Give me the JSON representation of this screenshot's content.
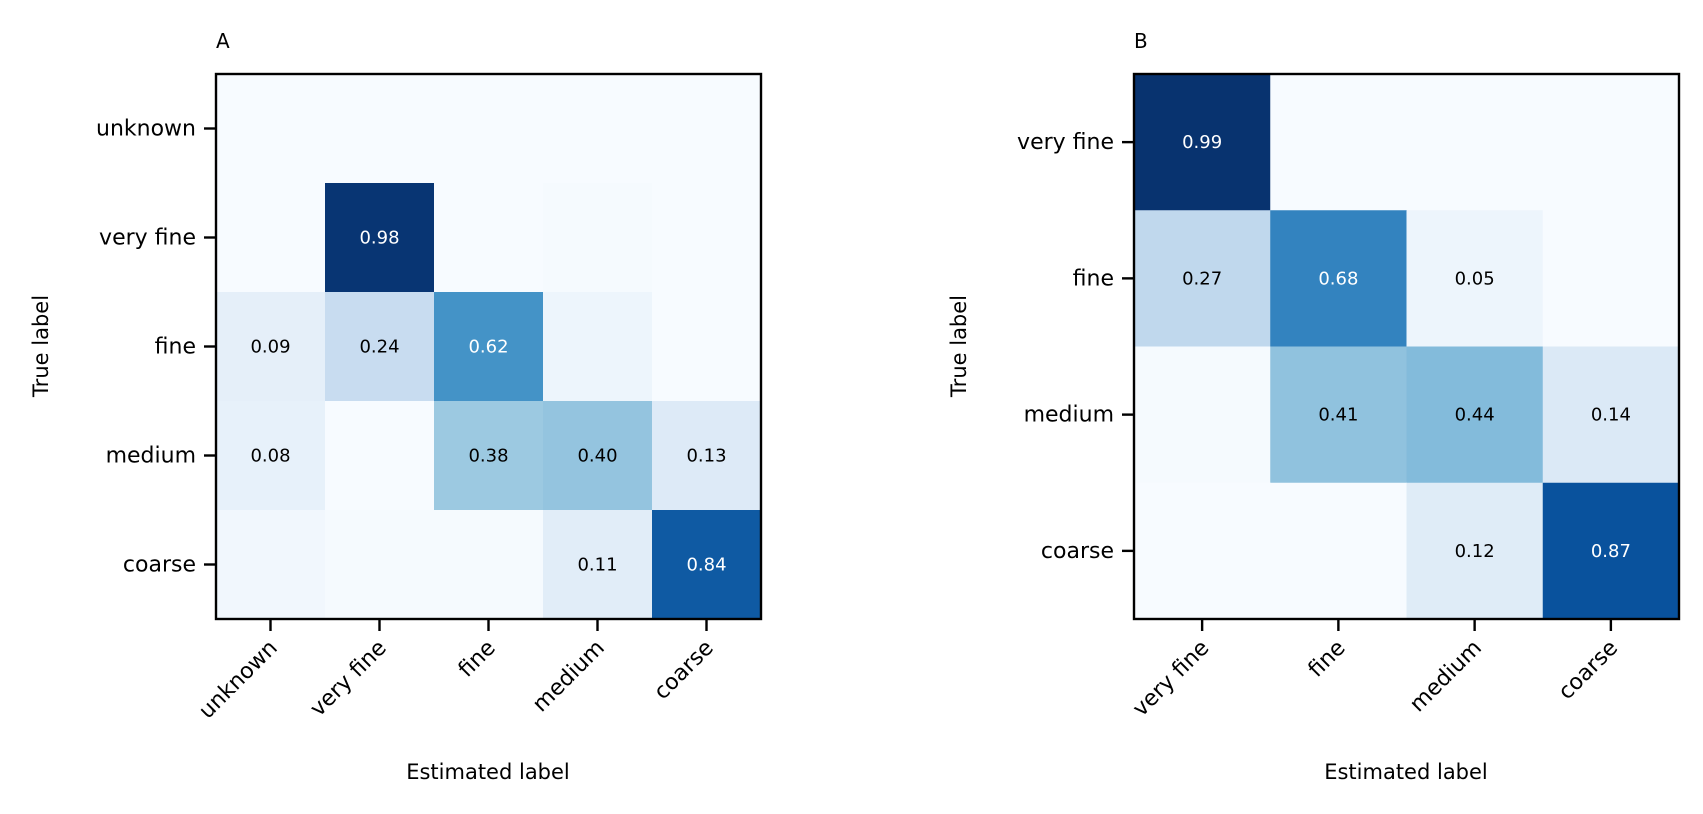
{
  "chart_data": [
    {
      "type": "heatmap",
      "title": "A",
      "xlabel": "Estimated label",
      "ylabel": "True label",
      "x_categories": [
        "unknown",
        "very fine",
        "fine",
        "medium",
        "coarse"
      ],
      "y_categories": [
        "unknown",
        "very fine",
        "fine",
        "medium",
        "coarse"
      ],
      "values": [
        [
          0.0,
          0.0,
          0.0,
          0.0,
          0.0
        ],
        [
          0.0,
          0.98,
          0.0,
          0.01,
          0.0
        ],
        [
          0.09,
          0.24,
          0.62,
          0.05,
          0.0
        ],
        [
          0.08,
          0.0,
          0.38,
          0.4,
          0.13
        ],
        [
          0.03,
          0.01,
          0.01,
          0.11,
          0.84
        ]
      ],
      "labels": [
        [
          "",
          "",
          "",
          "",
          ""
        ],
        [
          "",
          "0.98",
          "",
          "",
          ""
        ],
        [
          "0.09",
          "0.24",
          "0.62",
          "",
          ""
        ],
        [
          "0.08",
          "",
          "0.38",
          "0.40",
          "0.13"
        ],
        [
          "",
          "",
          "",
          "0.11",
          "0.84"
        ]
      ],
      "colormap": "Blues",
      "vmin": 0,
      "vmax": 1
    },
    {
      "type": "heatmap",
      "title": "B",
      "xlabel": "Estimated label",
      "ylabel": "True label",
      "x_categories": [
        "very fine",
        "fine",
        "medium",
        "coarse"
      ],
      "y_categories": [
        "very fine",
        "fine",
        "medium",
        "coarse"
      ],
      "values": [
        [
          0.99,
          0.0,
          0.0,
          0.0
        ],
        [
          0.27,
          0.68,
          0.05,
          0.0
        ],
        [
          0.01,
          0.41,
          0.44,
          0.14
        ],
        [
          0.0,
          0.0,
          0.12,
          0.87
        ]
      ],
      "labels": [
        [
          "0.99",
          "",
          "",
          ""
        ],
        [
          "0.27",
          "0.68",
          "0.05",
          ""
        ],
        [
          "",
          "0.41",
          "0.44",
          "0.14"
        ],
        [
          "",
          "",
          "0.12",
          "0.87"
        ]
      ],
      "colormap": "Blues",
      "vmin": 0,
      "vmax": 1
    }
  ]
}
